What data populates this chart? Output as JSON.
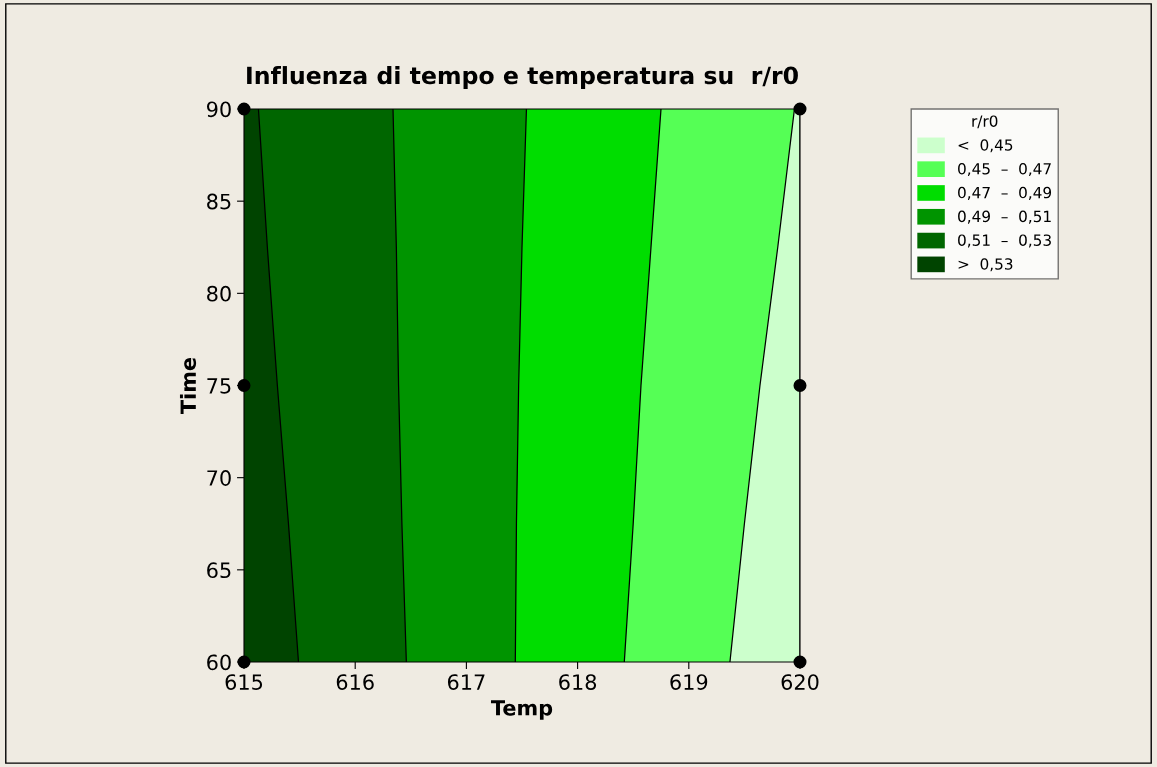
{
  "chart_data": {
    "type": "area",
    "title": "Influenza di tempo e temperatura su  r/r0",
    "xlabel": "Temp",
    "ylabel": "Time",
    "legend_title": "r/r0",
    "orientation": "horizontal",
    "xlim": [
      615,
      620
    ],
    "xticks": [
      615,
      616,
      617,
      618,
      619,
      620
    ],
    "ylim": [
      60,
      90
    ],
    "yticks": [
      60,
      65,
      70,
      75,
      80,
      85,
      90
    ],
    "grid": false,
    "legend": "right",
    "series": [
      {
        "name": "<  0,45",
        "color": "#ccffcc",
        "x": [
          60,
          67.5,
          75,
          82.5,
          90
        ],
        "values": [
          620,
          620,
          620,
          620,
          620
        ]
      },
      {
        "name": "0,45  –  0,47",
        "color": "#55ff55",
        "x": [
          60,
          67.5,
          75,
          82.5,
          90
        ],
        "values": [
          619.37,
          619.5,
          619.64,
          619.8,
          619.95
        ]
      },
      {
        "name": "0,47  –  0,49",
        "color": "#00dd00",
        "x": [
          60,
          67.5,
          75,
          82.5,
          90
        ],
        "values": [
          618.42,
          618.5,
          618.57,
          618.66,
          618.75
        ]
      },
      {
        "name": "0,49  –  0,51",
        "color": "#009400",
        "x": [
          60,
          67.5,
          75,
          82.5,
          90
        ],
        "values": [
          617.44,
          617.45,
          617.47,
          617.5,
          617.54
        ]
      },
      {
        "name": "0,51  –  0,53",
        "color": "#006600",
        "x": [
          60,
          67.5,
          75,
          82.5,
          90
        ],
        "values": [
          616.46,
          616.42,
          616.39,
          616.37,
          616.34
        ]
      },
      {
        "name": ">  0,53",
        "color": "#004400",
        "x": [
          60,
          67.5,
          75,
          82.5,
          90
        ],
        "values": [
          615.49,
          615.4,
          615.3,
          615.21,
          615.13
        ]
      },
      {
        "type": "scatter",
        "color": "#000000",
        "marker": "circle",
        "x": [
          60,
          75,
          90,
          60,
          75,
          90
        ],
        "values": [
          615,
          615,
          615,
          620,
          620,
          620
        ]
      }
    ]
  }
}
